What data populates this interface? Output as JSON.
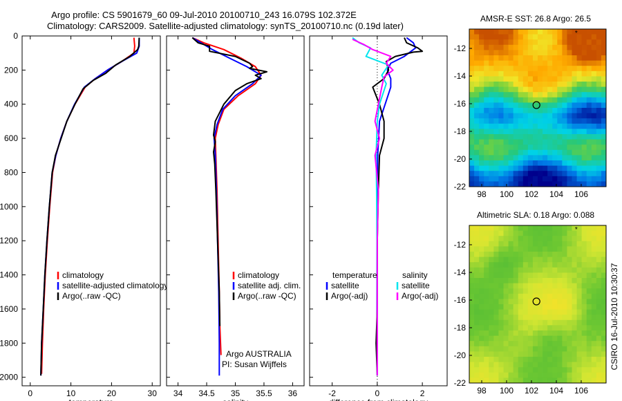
{
  "header": {
    "title_line1": "Argo profile: CS 5901679_60 09-Jul-2010 20100710_243 16.079S 102.372E",
    "title_line2": "Climatology: CARS2009. Satellite-adjusted climatology: synTS_20100710.nc (0.19d later)"
  },
  "side_label": "CSIRO 16-Jul-2010 10:30:37",
  "colors": {
    "climatology": "#ff0000",
    "satellite": "#0000ff",
    "argo": "#000000",
    "sal_satellite": "#00e5ee",
    "sal_argo": "#ff00ff"
  },
  "chart_data": [
    {
      "type": "line",
      "xlabel": "temperature",
      "xlim": [
        -2,
        32
      ],
      "ylim": [
        0,
        2050
      ],
      "y_inverted": true,
      "xticks": [
        "0",
        "10",
        "20",
        "30"
      ],
      "yticks": [
        "0",
        "200",
        "400",
        "600",
        "800",
        "1000",
        "1200",
        "1400",
        "1600",
        "1800",
        "2000"
      ],
      "legend": [
        "climatology",
        "satellite-adjusted climatology",
        "Argo(..raw -QC)"
      ],
      "series": [
        {
          "name": "climatology",
          "color": "#ff0000",
          "points": [
            [
              25.5,
              10
            ],
            [
              25.7,
              60
            ],
            [
              25.5,
              100
            ],
            [
              22.5,
              150
            ],
            [
              19,
              200
            ],
            [
              16,
              250
            ],
            [
              13.5,
              300
            ],
            [
              11,
              400
            ],
            [
              9,
              500
            ],
            [
              7.5,
              600
            ],
            [
              6.3,
              700
            ],
            [
              5.5,
              800
            ],
            [
              4.8,
              1000
            ],
            [
              4.2,
              1200
            ],
            [
              3.7,
              1400
            ],
            [
              3.3,
              1600
            ],
            [
              3,
              1800
            ],
            [
              2.8,
              1980
            ]
          ]
        },
        {
          "name": "satellite",
          "color": "#0000ff",
          "points": [
            [
              26.8,
              10
            ],
            [
              26.8,
              60
            ],
            [
              26.2,
              100
            ],
            [
              22.5,
              150
            ],
            [
              19,
              200
            ],
            [
              16,
              250
            ],
            [
              13.3,
              300
            ],
            [
              10.9,
              400
            ],
            [
              9,
              500
            ],
            [
              7.5,
              600
            ],
            [
              6.3,
              700
            ],
            [
              5.4,
              800
            ],
            [
              4.7,
              1000
            ],
            [
              4.1,
              1200
            ],
            [
              3.6,
              1400
            ],
            [
              3.2,
              1600
            ],
            [
              2.8,
              1800
            ],
            [
              2.6,
              1990
            ]
          ]
        },
        {
          "name": "Argo",
          "color": "#000000",
          "points": [
            [
              26.8,
              10
            ],
            [
              26.7,
              60
            ],
            [
              26.4,
              80
            ],
            [
              24.5,
              120
            ],
            [
              21,
              170
            ],
            [
              18.5,
              220
            ],
            [
              15.5,
              260
            ],
            [
              13,
              310
            ],
            [
              11,
              400
            ],
            [
              9,
              500
            ],
            [
              7.6,
              600
            ],
            [
              6.2,
              700
            ],
            [
              5.4,
              800
            ],
            [
              4.7,
              1000
            ],
            [
              4.1,
              1200
            ],
            [
              3.6,
              1400
            ],
            [
              3.2,
              1600
            ],
            [
              2.8,
              1800
            ],
            [
              2.6,
              1990
            ]
          ]
        }
      ]
    },
    {
      "type": "line",
      "xlabel": "salinity",
      "xlim": [
        33.8,
        36.2
      ],
      "ylim": [
        0,
        2050
      ],
      "y_inverted": true,
      "xticks": [
        "34",
        "34.5",
        "35",
        "35.5",
        "36"
      ],
      "yticks": [],
      "legend": [
        "climatology",
        "satellite adj. clim.",
        "Argo(..raw -QC)"
      ],
      "annotation_line1": "Argo AUSTRALIA",
      "annotation_line2": "PI: Susan Wijffels",
      "series": [
        {
          "name": "climatology",
          "color": "#ff0000",
          "points": [
            [
              34.25,
              10
            ],
            [
              34.45,
              40
            ],
            [
              34.8,
              80
            ],
            [
              35.1,
              130
            ],
            [
              35.35,
              180
            ],
            [
              35.45,
              230
            ],
            [
              35.35,
              280
            ],
            [
              35.05,
              350
            ],
            [
              34.8,
              430
            ],
            [
              34.7,
              520
            ],
            [
              34.65,
              600
            ],
            [
              34.66,
              700
            ],
            [
              34.68,
              900
            ],
            [
              34.7,
              1200
            ],
            [
              34.72,
              1500
            ],
            [
              34.73,
              1700
            ],
            [
              34.75,
              1870
            ]
          ]
        },
        {
          "name": "satellite",
          "color": "#0000ff",
          "points": [
            [
              34.25,
              10
            ],
            [
              34.4,
              40
            ],
            [
              34.6,
              80
            ],
            [
              34.9,
              130
            ],
            [
              35.2,
              180
            ],
            [
              35.45,
              230
            ],
            [
              35.3,
              280
            ],
            [
              35.0,
              350
            ],
            [
              34.78,
              430
            ],
            [
              34.68,
              520
            ],
            [
              34.63,
              600
            ],
            [
              34.65,
              700
            ],
            [
              34.67,
              900
            ],
            [
              34.69,
              1200
            ],
            [
              34.71,
              1500
            ],
            [
              34.72,
              1800
            ],
            [
              34.72,
              1990
            ]
          ]
        },
        {
          "name": "Argo",
          "color": "#000000",
          "points": [
            [
              34.25,
              10
            ],
            [
              34.35,
              40
            ],
            [
              34.55,
              60
            ],
            [
              34.55,
              90
            ],
            [
              35.0,
              120
            ],
            [
              35.25,
              160
            ],
            [
              35.3,
              180
            ],
            [
              35.25,
              190
            ],
            [
              35.55,
              210
            ],
            [
              35.35,
              230
            ],
            [
              35.45,
              250
            ],
            [
              35.2,
              280
            ],
            [
              35.0,
              320
            ],
            [
              34.8,
              400
            ],
            [
              34.65,
              500
            ],
            [
              34.62,
              580
            ],
            [
              34.65,
              620
            ],
            [
              34.62,
              680
            ],
            [
              34.64,
              750
            ],
            [
              34.66,
              900
            ],
            [
              34.68,
              1100
            ],
            [
              34.7,
              1300
            ],
            [
              34.72,
              1500
            ],
            [
              34.73,
              1700
            ]
          ]
        }
      ]
    },
    {
      "type": "line",
      "xlabel": "difference from climatology",
      "xlim": [
        -3,
        3.1
      ],
      "ylim": [
        0,
        2050
      ],
      "y_inverted": true,
      "xticks": [
        "-2",
        "0",
        "2"
      ],
      "yticks": [],
      "legend_left": [
        "temperature",
        "satellite",
        "Argo(-adj)"
      ],
      "legend_right": [
        "salinity",
        "satellite",
        "Argo(-adj)"
      ],
      "series": [
        {
          "name": "temperature satellite",
          "color": "#0000ff",
          "points": [
            [
              1.3,
              10
            ],
            [
              1.6,
              40
            ],
            [
              1.7,
              70
            ],
            [
              1.2,
              120
            ],
            [
              0.6,
              160
            ],
            [
              0.45,
              200
            ],
            [
              0.6,
              250
            ],
            [
              0.6,
              300
            ],
            [
              0.35,
              400
            ],
            [
              0.1,
              500
            ],
            [
              0.02,
              700
            ],
            [
              0.0,
              900
            ],
            [
              -0.01,
              1200
            ],
            [
              -0.01,
              1600
            ],
            [
              0.0,
              1990
            ]
          ]
        },
        {
          "name": "temperature Argo",
          "color": "#000000",
          "points": [
            [
              1.2,
              10
            ],
            [
              1.3,
              40
            ],
            [
              1.8,
              70
            ],
            [
              2.0,
              90
            ],
            [
              1.6,
              95
            ],
            [
              0.8,
              120
            ],
            [
              0.4,
              150
            ],
            [
              0.5,
              200
            ],
            [
              0.3,
              250
            ],
            [
              -0.2,
              300
            ],
            [
              0.1,
              400
            ],
            [
              0.3,
              500
            ],
            [
              0.3,
              600
            ],
            [
              0.1,
              700
            ],
            [
              0.05,
              900
            ],
            [
              0.0,
              1200
            ],
            [
              0.0,
              1600
            ],
            [
              -0.05,
              1800
            ],
            [
              0.0,
              1990
            ]
          ]
        },
        {
          "name": "salinity satellite",
          "color": "#00e5ee",
          "points": [
            [
              -1.1,
              10
            ],
            [
              -0.8,
              40
            ],
            [
              -0.3,
              70
            ],
            [
              -0.5,
              120
            ],
            [
              0.5,
              170
            ],
            [
              0.2,
              230
            ],
            [
              0.4,
              280
            ],
            [
              0.1,
              400
            ],
            [
              0.0,
              500
            ],
            [
              -0.05,
              700
            ],
            [
              -0.03,
              900
            ],
            [
              -0.01,
              1200
            ],
            [
              0.0,
              1600
            ],
            [
              0.0,
              1990
            ]
          ]
        },
        {
          "name": "salinity Argo",
          "color": "#ff00ff",
          "points": [
            [
              -1.1,
              20
            ],
            [
              -0.6,
              50
            ],
            [
              -0.2,
              80
            ],
            [
              0.6,
              120
            ],
            [
              0.4,
              160
            ],
            [
              0.7,
              200
            ],
            [
              0.3,
              240
            ],
            [
              0.2,
              300
            ],
            [
              0.05,
              400
            ],
            [
              -0.1,
              500
            ],
            [
              0.1,
              600
            ],
            [
              -0.1,
              700
            ],
            [
              0.05,
              900
            ],
            [
              0.0,
              1200
            ],
            [
              0.0,
              1600
            ],
            [
              0.0,
              1990
            ]
          ]
        }
      ]
    },
    {
      "type": "heatmap",
      "title": "AMSR-E SST: 26.8 Argo: 26.5",
      "xlim": [
        97,
        108
      ],
      "ylim": [
        -22,
        -10.6
      ],
      "xticks": [
        "98",
        "100",
        "102",
        "104",
        "106"
      ],
      "yticks": [
        "-12",
        "-14",
        "-16",
        "-18",
        "-20",
        "-22"
      ],
      "float_position": [
        102.4,
        -16.1
      ],
      "star_position": [
        105.6,
        -10.8
      ]
    },
    {
      "type": "heatmap",
      "title": "Altimetric SLA: 0.18 Argo: 0.088",
      "xlim": [
        97,
        108
      ],
      "ylim": [
        -22,
        -10.6
      ],
      "xticks": [
        "98",
        "100",
        "102",
        "104",
        "106"
      ],
      "yticks": [
        "-12",
        "-14",
        "-16",
        "-18",
        "-20",
        "-22"
      ],
      "float_position": [
        102.4,
        -16.1
      ],
      "star_position": [
        105.6,
        -10.8
      ]
    }
  ]
}
